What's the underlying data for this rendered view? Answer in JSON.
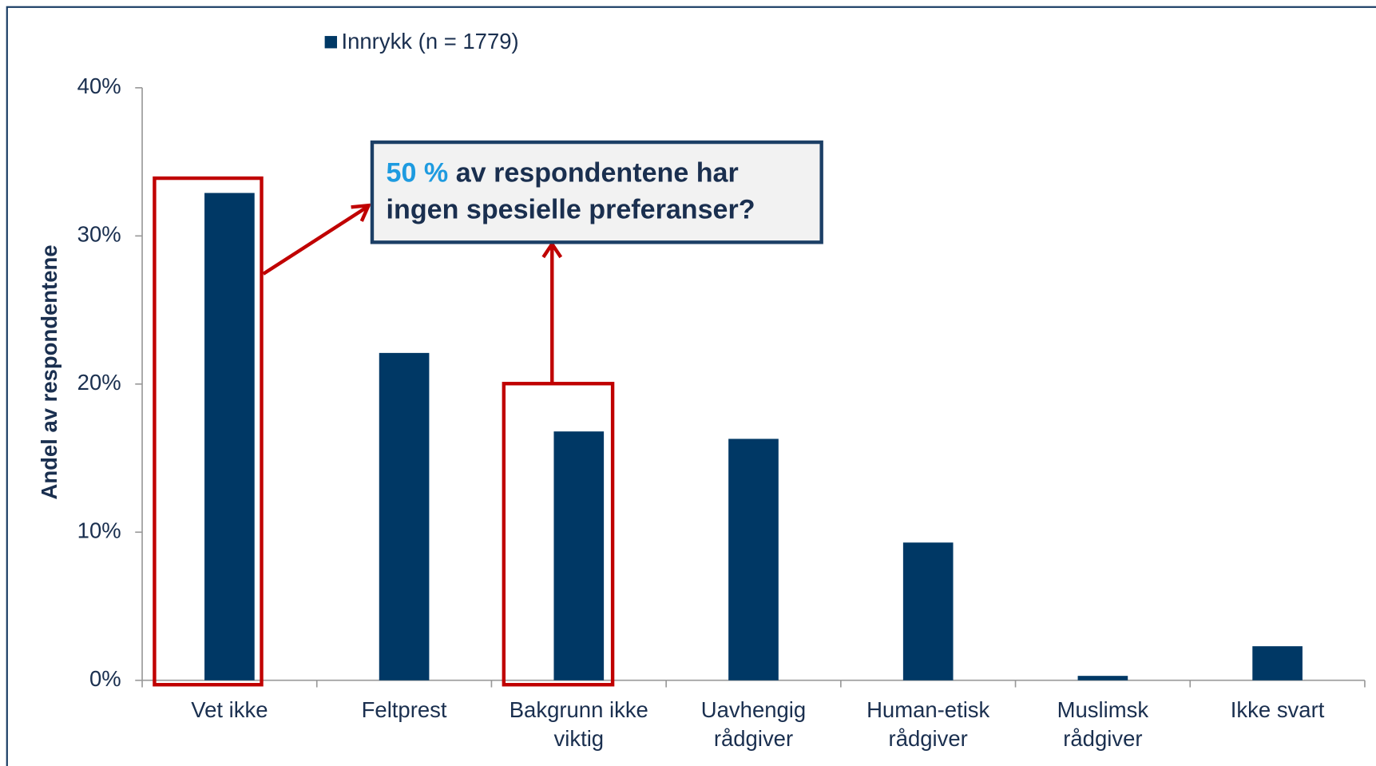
{
  "chart_data": {
    "type": "bar",
    "y_label": "Andel av respondentene",
    "categories": [
      "Vet ikke",
      "Feltprest",
      "Bakgrunn ikke viktig",
      "Uavhengig rådgiver",
      "Human-etisk rådgiver",
      "Muslimsk rådgiver",
      "Ikke svart"
    ],
    "series": [
      {
        "name": "Innrykk (n = 1779)",
        "color": "#003865",
        "values": [
          32.9,
          22.1,
          16.8,
          16.3,
          9.3,
          0.3,
          2.3
        ]
      }
    ],
    "ylim": [
      0,
      40
    ],
    "yticks": [
      {
        "value": 0,
        "label": "0%"
      },
      {
        "value": 10,
        "label": "10%"
      },
      {
        "value": 20,
        "label": "20%"
      },
      {
        "value": 30,
        "label": "30%"
      },
      {
        "value": 40,
        "label": "40%"
      }
    ],
    "legend": "top",
    "annotation": {
      "highlight": "50 %",
      "text": "av respondentene har ingen spesielle preferanser?"
    }
  }
}
